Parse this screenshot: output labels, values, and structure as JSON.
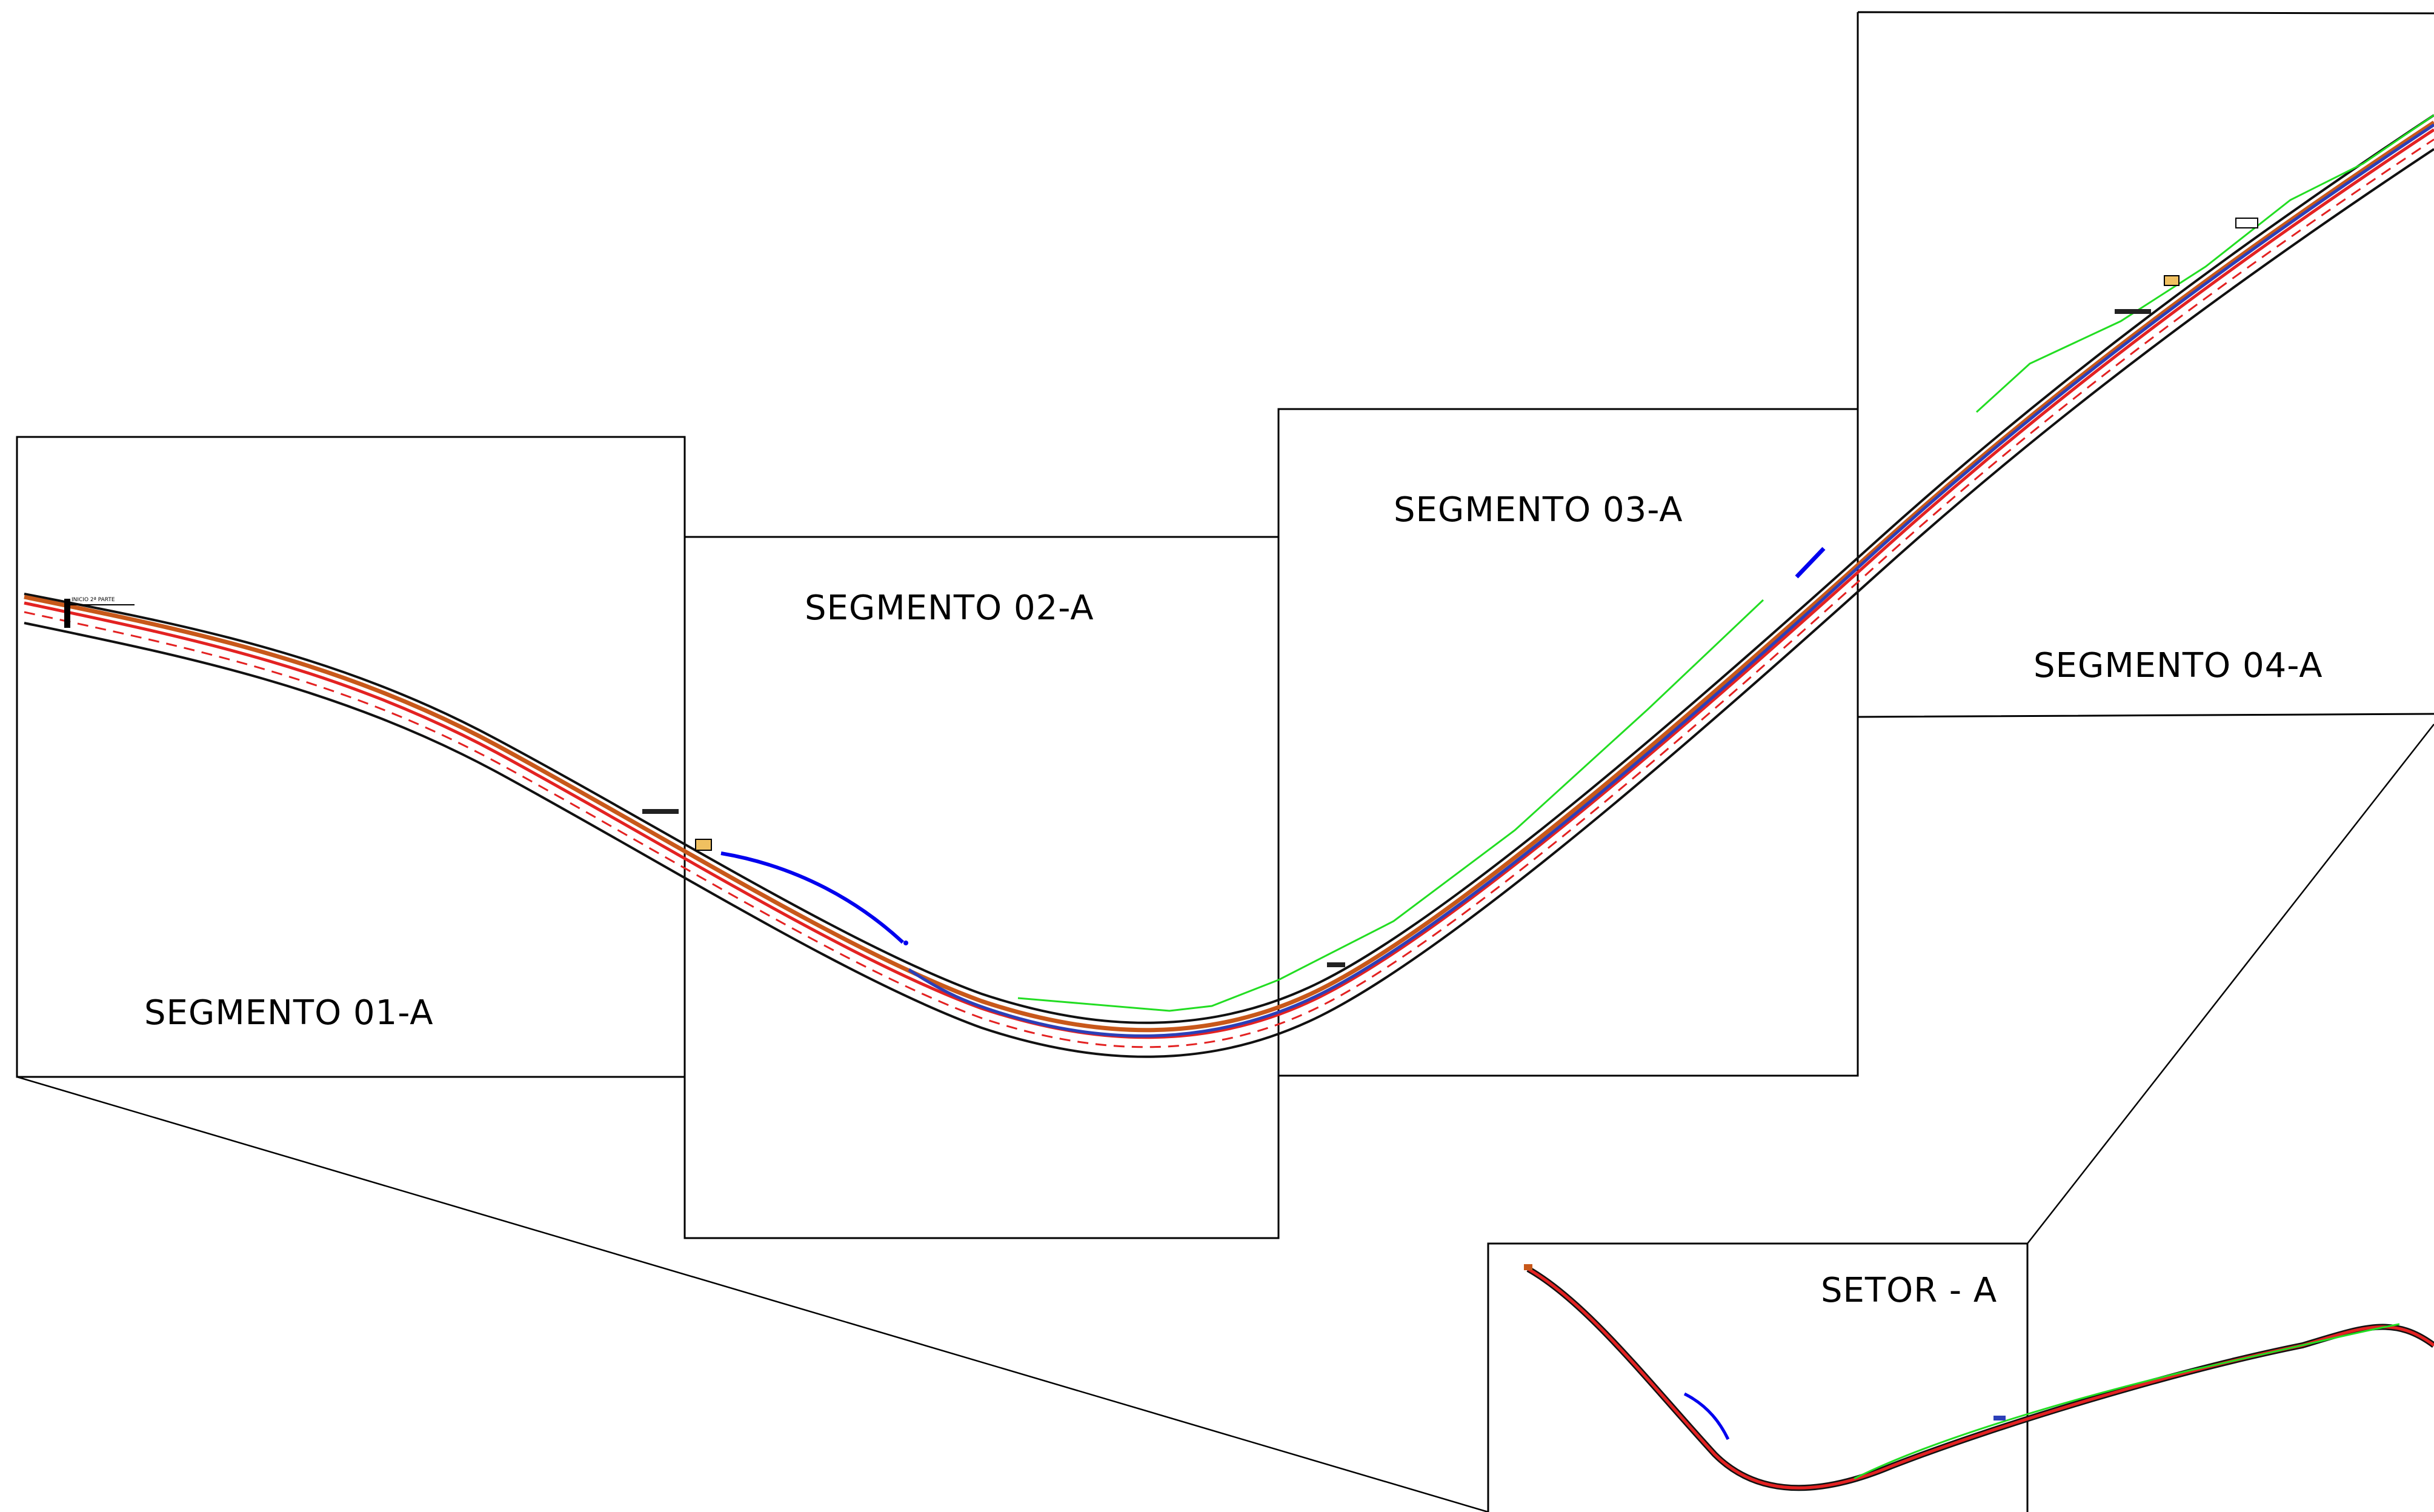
{
  "segments": {
    "seg01": {
      "label": "SEGMENTO 01-A"
    },
    "seg02": {
      "label": "SEGMENTO 02-A"
    },
    "seg03": {
      "label": "SEGMENTO 03-A"
    },
    "seg04": {
      "label": "SEGMENTO 04-A"
    }
  },
  "sector": {
    "label": "SETOR - A"
  },
  "annotation": {
    "start_note": "INICIO 2ª PARTE"
  },
  "colors": {
    "road_edge": "#111111",
    "road_red": "#e32222",
    "road_orange": "#c8581a",
    "road_blue": "#2b3fb8",
    "green_line": "#22dd22",
    "blue_arc": "#0000ee",
    "marker_fill": "#f0c060"
  }
}
